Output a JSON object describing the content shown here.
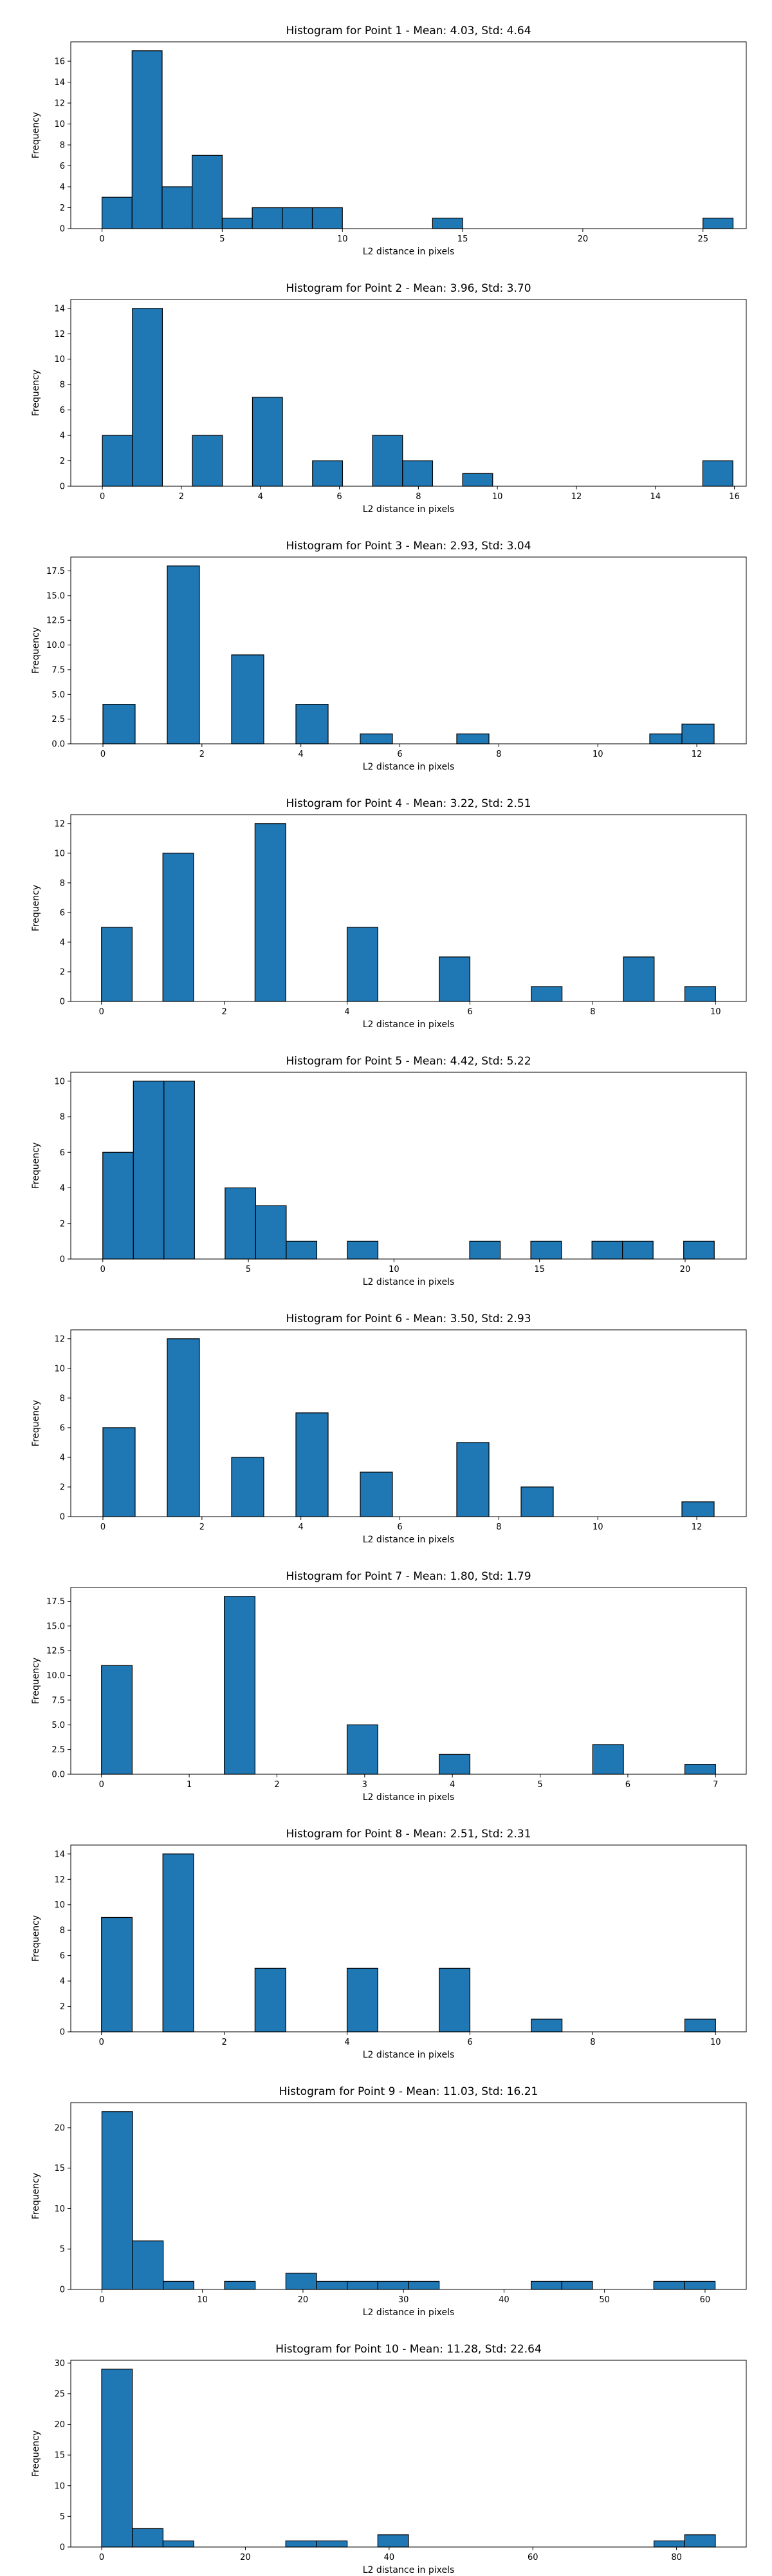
{
  "chart_data": [
    {
      "type": "bar",
      "title": "Histogram for Point 1 - Mean: 4.03, Std: 4.64",
      "xlabel": "L2 distance in pixels",
      "ylabel": "Frequency",
      "xlim": [
        -1.3,
        26.8
      ],
      "ylim": [
        0,
        17.85
      ],
      "xticks": [
        0,
        5,
        10,
        15,
        20,
        25
      ],
      "yticks": [
        0,
        2,
        4,
        6,
        8,
        10,
        12,
        14,
        16
      ],
      "bin_edges": [
        0,
        1.25,
        2.5,
        3.75,
        5,
        6.25,
        7.5,
        8.75,
        10,
        11.25,
        12.5,
        13.75,
        15,
        16.25,
        17.5,
        18.75,
        20,
        21.25,
        22.5,
        23.75,
        25,
        26.25
      ],
      "values": [
        3,
        17,
        4,
        7,
        1,
        2,
        2,
        2,
        0,
        0,
        0,
        1,
        0,
        0,
        0,
        0,
        0,
        0,
        0,
        0,
        1
      ],
      "bar_color": "#1f77b4",
      "edge_color": "#000000"
    },
    {
      "type": "bar",
      "title": "Histogram for Point 2 - Mean: 3.96, Std: 3.70",
      "xlabel": "L2 distance in pixels",
      "ylabel": "Frequency",
      "xlim": [
        -0.8,
        16.3
      ],
      "ylim": [
        0,
        14.7
      ],
      "xticks": [
        0,
        2,
        4,
        6,
        8,
        10,
        12,
        14,
        16
      ],
      "yticks": [
        0,
        2,
        4,
        6,
        8,
        10,
        12,
        14
      ],
      "bin_edges": [
        0,
        0.76,
        1.52,
        2.28,
        3.04,
        3.8,
        4.56,
        5.32,
        6.08,
        6.84,
        7.6,
        8.36,
        9.12,
        9.88,
        10.64,
        11.4,
        12.16,
        12.92,
        13.68,
        14.44,
        15.2,
        15.96
      ],
      "values": [
        4,
        14,
        0,
        4,
        0,
        7,
        0,
        2,
        0,
        4,
        2,
        0,
        1,
        0,
        0,
        0,
        0,
        0,
        0,
        0,
        2
      ],
      "bar_color": "#1f77b4",
      "edge_color": "#000000"
    },
    {
      "type": "bar",
      "title": "Histogram for Point 3 - Mean: 2.93, Std: 3.04",
      "xlabel": "L2 distance in pixels",
      "ylabel": "Frequency",
      "xlim": [
        -0.65,
        13.0
      ],
      "ylim": [
        0,
        18.9
      ],
      "xticks": [
        0,
        2,
        4,
        6,
        8,
        10,
        12
      ],
      "ytick_labels": [
        "0.0",
        "2.5",
        "5.0",
        "7.5",
        "10.0",
        "12.5",
        "15.0",
        "17.5"
      ],
      "yticks": [
        0,
        2.5,
        5,
        7.5,
        10,
        12.5,
        15,
        17.5
      ],
      "bin_edges": [
        0,
        0.65,
        1.3,
        1.95,
        2.6,
        3.25,
        3.9,
        4.55,
        5.2,
        5.85,
        6.5,
        7.15,
        7.8,
        8.45,
        9.1,
        9.75,
        10.4,
        11.05,
        11.7,
        12.35,
        13.0
      ],
      "values": [
        4,
        0,
        18,
        0,
        9,
        0,
        4,
        0,
        1,
        0,
        0,
        1,
        0,
        0,
        0,
        0,
        0,
        1,
        2,
        0
      ],
      "bar_color": "#1f77b4",
      "edge_color": "#000000"
    },
    {
      "type": "bar",
      "title": "Histogram for Point 4 - Mean: 3.22, Std: 2.51",
      "xlabel": "L2 distance in pixels",
      "ylabel": "Frequency",
      "xlim": [
        -0.5,
        10.5
      ],
      "ylim": [
        0,
        12.6
      ],
      "xticks": [
        0,
        2,
        4,
        6,
        8,
        10
      ],
      "yticks": [
        0,
        2,
        4,
        6,
        8,
        10,
        12
      ],
      "bin_edges": [
        0,
        0.5,
        1,
        1.5,
        2,
        2.5,
        3,
        3.5,
        4,
        4.5,
        5,
        5.5,
        6,
        6.5,
        7,
        7.5,
        8,
        8.5,
        9,
        9.5,
        10
      ],
      "values": [
        5,
        0,
        10,
        0,
        0,
        12,
        0,
        0,
        5,
        0,
        0,
        3,
        0,
        0,
        1,
        0,
        0,
        3,
        0,
        1
      ],
      "bar_color": "#1f77b4",
      "edge_color": "#000000"
    },
    {
      "type": "bar",
      "title": "Histogram for Point 5 - Mean: 4.42, Std: 5.22",
      "xlabel": "L2 distance in pixels",
      "ylabel": "Frequency",
      "xlim": [
        -1.1,
        22.1
      ],
      "ylim": [
        0,
        10.5
      ],
      "xticks": [
        0,
        5,
        10,
        15,
        20
      ],
      "yticks": [
        0,
        2,
        4,
        6,
        8,
        10
      ],
      "bin_edges": [
        0,
        1.05,
        2.1,
        3.15,
        4.2,
        5.25,
        6.3,
        7.35,
        8.4,
        9.45,
        10.5,
        11.55,
        12.6,
        13.65,
        14.7,
        15.75,
        16.8,
        17.85,
        18.9,
        19.95,
        21.0
      ],
      "values": [
        6,
        10,
        10,
        0,
        4,
        3,
        1,
        0,
        1,
        0,
        0,
        0,
        1,
        0,
        1,
        0,
        1,
        1,
        0,
        1
      ],
      "bar_color": "#1f77b4",
      "edge_color": "#000000"
    },
    {
      "type": "bar",
      "title": "Histogram for Point 6 - Mean: 3.50, Std: 2.93",
      "xlabel": "L2 distance in pixels",
      "ylabel": "Frequency",
      "xlim": [
        -0.65,
        13.0
      ],
      "ylim": [
        0,
        12.6
      ],
      "xticks": [
        0,
        2,
        4,
        6,
        8,
        10,
        12
      ],
      "yticks": [
        0,
        2,
        4,
        6,
        8,
        10,
        12
      ],
      "bin_edges": [
        0,
        0.65,
        1.3,
        1.95,
        2.6,
        3.25,
        3.9,
        4.55,
        5.2,
        5.85,
        6.5,
        7.15,
        7.8,
        8.45,
        9.1,
        9.75,
        10.4,
        11.05,
        11.7,
        12.35,
        13.0
      ],
      "values": [
        6,
        0,
        12,
        0,
        4,
        0,
        7,
        0,
        3,
        0,
        0,
        5,
        0,
        2,
        0,
        0,
        0,
        0,
        1,
        0
      ],
      "bar_color": "#1f77b4",
      "edge_color": "#000000"
    },
    {
      "type": "bar",
      "title": "Histogram for Point 7 - Mean: 1.80, Std: 1.79",
      "xlabel": "L2 distance in pixels",
      "ylabel": "Frequency",
      "xlim": [
        -0.35,
        7.35
      ],
      "ylim": [
        0,
        18.9
      ],
      "xticks": [
        0,
        1,
        2,
        3,
        4,
        5,
        6,
        7
      ],
      "ytick_labels": [
        "0.0",
        "2.5",
        "5.0",
        "7.5",
        "10.0",
        "12.5",
        "15.0",
        "17.5"
      ],
      "yticks": [
        0,
        2.5,
        5,
        7.5,
        10,
        12.5,
        15,
        17.5
      ],
      "bin_edges": [
        0,
        0.35,
        0.7,
        1.05,
        1.4,
        1.75,
        2.1,
        2.45,
        2.8,
        3.15,
        3.5,
        3.85,
        4.2,
        4.55,
        4.9,
        5.25,
        5.6,
        5.95,
        6.3,
        6.65,
        7.0
      ],
      "values": [
        11,
        0,
        0,
        0,
        18,
        0,
        0,
        0,
        5,
        0,
        0,
        2,
        0,
        0,
        0,
        0,
        3,
        0,
        0,
        1
      ],
      "bar_color": "#1f77b4",
      "edge_color": "#000000"
    },
    {
      "type": "bar",
      "title": "Histogram for Point 8 - Mean: 2.51, Std: 2.31",
      "xlabel": "L2 distance in pixels",
      "ylabel": "Frequency",
      "xlim": [
        -0.5,
        10.5
      ],
      "ylim": [
        0,
        14.7
      ],
      "xticks": [
        0,
        2,
        4,
        6,
        8,
        10
      ],
      "yticks": [
        0,
        2,
        4,
        6,
        8,
        10,
        12,
        14
      ],
      "bin_edges": [
        0,
        0.5,
        1,
        1.5,
        2,
        2.5,
        3,
        3.5,
        4,
        4.5,
        5,
        5.5,
        6,
        6.5,
        7,
        7.5,
        8,
        8.5,
        9,
        9.5,
        10
      ],
      "values": [
        9,
        0,
        14,
        0,
        0,
        5,
        0,
        0,
        5,
        0,
        0,
        5,
        0,
        0,
        1,
        0,
        0,
        0,
        0,
        1
      ],
      "bar_color": "#1f77b4",
      "edge_color": "#000000"
    },
    {
      "type": "bar",
      "title": "Histogram for Point 9 - Mean: 11.03, Std: 16.21",
      "xlabel": "L2 distance in pixels",
      "ylabel": "Frequency",
      "xlim": [
        -3.1,
        64.1
      ],
      "ylim": [
        0,
        23.1
      ],
      "xticks": [
        0,
        10,
        20,
        30,
        40,
        50,
        60
      ],
      "yticks": [
        0,
        5,
        10,
        15,
        20
      ],
      "bin_edges": [
        0,
        3.05,
        6.1,
        9.15,
        12.2,
        15.25,
        18.3,
        21.35,
        24.4,
        27.45,
        30.5,
        33.55,
        36.6,
        39.65,
        42.7,
        45.75,
        48.8,
        51.85,
        54.9,
        57.95,
        61.0
      ],
      "values": [
        22,
        6,
        1,
        0,
        1,
        0,
        2,
        1,
        1,
        1,
        1,
        0,
        0,
        0,
        1,
        1,
        0,
        0,
        1,
        1
      ],
      "bar_color": "#1f77b4",
      "edge_color": "#000000"
    },
    {
      "type": "bar",
      "title": "Histogram for Point 10 - Mean: 11.28, Std: 22.64",
      "xlabel": "L2 distance in pixels",
      "ylabel": "Frequency",
      "xlim": [
        -4.3,
        89.7
      ],
      "ylim": [
        0,
        30.45
      ],
      "xticks": [
        0,
        20,
        40,
        60,
        80
      ],
      "yticks": [
        0,
        5,
        10,
        15,
        20,
        25,
        30
      ],
      "bin_edges": [
        0,
        4.27,
        8.54,
        12.81,
        17.08,
        21.35,
        25.62,
        29.89,
        34.16,
        38.43,
        42.7,
        46.97,
        51.24,
        55.51,
        59.78,
        64.05,
        68.32,
        72.59,
        76.86,
        81.13,
        85.4
      ],
      "values": [
        29,
        3,
        1,
        0,
        0,
        0,
        1,
        1,
        0,
        2,
        0,
        0,
        0,
        0,
        0,
        0,
        0,
        0,
        1,
        2
      ],
      "bar_color": "#1f77b4",
      "edge_color": "#000000"
    }
  ]
}
